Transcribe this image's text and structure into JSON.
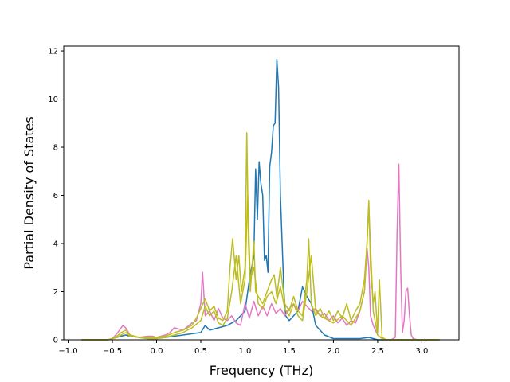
{
  "chart_data": {
    "type": "line",
    "title": "",
    "xlabel": "Frequency (THz)",
    "ylabel": "Partial Density of States",
    "xlim": [
      -1.05,
      3.42
    ],
    "ylim": [
      0,
      12.2
    ],
    "xticks": [
      -1.0,
      -0.5,
      0.0,
      0.5,
      1.0,
      1.5,
      2.0,
      2.5,
      3.0
    ],
    "xtick_labels": [
      "−1.0",
      "−0.5",
      "0.0",
      "0.5",
      "1.0",
      "1.5",
      "2.0",
      "2.5",
      "3.0"
    ],
    "yticks": [
      0,
      2,
      4,
      6,
      8,
      10,
      12
    ],
    "ytick_labels": [
      "0",
      "2",
      "4",
      "6",
      "8",
      "10",
      "12"
    ],
    "grid": false,
    "legend": "none",
    "series": [
      {
        "color": "#1f77b4",
        "x": [
          -0.85,
          -0.55,
          -0.5,
          -0.45,
          -0.4,
          -0.35,
          -0.3,
          -0.2,
          -0.1,
          0.0,
          0.1,
          0.2,
          0.3,
          0.4,
          0.5,
          0.55,
          0.6,
          0.7,
          0.8,
          0.9,
          1.0,
          1.05,
          1.1,
          1.12,
          1.14,
          1.16,
          1.18,
          1.2,
          1.22,
          1.24,
          1.26,
          1.28,
          1.3,
          1.32,
          1.34,
          1.36,
          1.38,
          1.4,
          1.42,
          1.44,
          1.46,
          1.5,
          1.55,
          1.6,
          1.65,
          1.7,
          1.75,
          1.8,
          1.9,
          2.0,
          2.1,
          2.2,
          2.3,
          2.4,
          2.45,
          2.5,
          2.6,
          2.8,
          3.0,
          3.2
        ],
        "values": [
          0,
          0,
          0.05,
          0.1,
          0.15,
          0.2,
          0.15,
          0.1,
          0.05,
          0.05,
          0.1,
          0.15,
          0.2,
          0.25,
          0.3,
          0.6,
          0.4,
          0.5,
          0.6,
          0.8,
          1.2,
          2.5,
          3.5,
          7.1,
          5.0,
          7.4,
          6.5,
          6.0,
          3.3,
          3.5,
          2.8,
          7.2,
          7.8,
          8.9,
          9.0,
          11.65,
          10.5,
          6.0,
          4.0,
          2.0,
          1.0,
          0.8,
          1.0,
          1.2,
          2.2,
          1.8,
          1.5,
          0.6,
          0.2,
          0.05,
          0.05,
          0.05,
          0.05,
          0.1,
          0.05,
          0.0,
          0.0,
          0.0,
          0.0,
          0.0
        ]
      },
      {
        "color": "#e377c2",
        "x": [
          -0.85,
          -0.55,
          -0.5,
          -0.45,
          -0.42,
          -0.38,
          -0.35,
          -0.3,
          -0.25,
          -0.2,
          -0.1,
          -0.05,
          0.0,
          0.1,
          0.15,
          0.2,
          0.3,
          0.4,
          0.45,
          0.5,
          0.52,
          0.55,
          0.6,
          0.65,
          0.7,
          0.75,
          0.8,
          0.85,
          0.9,
          0.95,
          1.0,
          1.05,
          1.1,
          1.15,
          1.2,
          1.25,
          1.3,
          1.35,
          1.4,
          1.45,
          1.5,
          1.55,
          1.6,
          1.65,
          1.7,
          1.75,
          1.8,
          1.85,
          1.9,
          1.95,
          2.0,
          2.05,
          2.1,
          2.15,
          2.2,
          2.25,
          2.3,
          2.35,
          2.38,
          2.4,
          2.42,
          2.45,
          2.5,
          2.55,
          2.6,
          2.65,
          2.7,
          2.72,
          2.74,
          2.76,
          2.78,
          2.8,
          2.82,
          2.84,
          2.86,
          2.88,
          2.9,
          2.95,
          3.0,
          3.2
        ],
        "values": [
          0,
          0,
          0.05,
          0.25,
          0.4,
          0.6,
          0.5,
          0.2,
          0.15,
          0.1,
          0.15,
          0.15,
          0.1,
          0.2,
          0.3,
          0.5,
          0.4,
          0.7,
          0.8,
          1.5,
          2.8,
          1.0,
          1.2,
          0.8,
          1.3,
          0.9,
          0.8,
          1.0,
          0.7,
          0.6,
          1.5,
          0.9,
          1.6,
          1.0,
          1.4,
          1.0,
          1.5,
          1.1,
          1.3,
          1.0,
          1.3,
          1.5,
          1.2,
          1.6,
          1.4,
          1.2,
          1.3,
          1.0,
          1.1,
          0.8,
          1.0,
          0.7,
          0.9,
          0.6,
          0.8,
          0.7,
          1.2,
          2.0,
          3.8,
          3.0,
          1.0,
          0.6,
          0.2,
          0.05,
          0.0,
          0.0,
          0.1,
          4.5,
          7.3,
          3.0,
          0.3,
          0.8,
          2.0,
          2.15,
          1.0,
          0.2,
          0.05,
          0.0,
          0.0,
          0.0
        ]
      },
      {
        "color": "#bcbd22",
        "x": [
          -0.85,
          -0.55,
          -0.5,
          -0.45,
          -0.4,
          -0.35,
          -0.3,
          -0.2,
          -0.1,
          0.0,
          0.1,
          0.2,
          0.3,
          0.4,
          0.45,
          0.5,
          0.55,
          0.6,
          0.65,
          0.7,
          0.75,
          0.8,
          0.83,
          0.86,
          0.9,
          0.93,
          0.96,
          1.0,
          1.02,
          1.04,
          1.06,
          1.08,
          1.1,
          1.12,
          1.15,
          1.2,
          1.25,
          1.3,
          1.33,
          1.36,
          1.4,
          1.45,
          1.5,
          1.55,
          1.6,
          1.65,
          1.7,
          1.72,
          1.75,
          1.8,
          1.85,
          1.9,
          1.95,
          2.0,
          2.05,
          2.1,
          2.15,
          2.2,
          2.25,
          2.3,
          2.35,
          2.38,
          2.4,
          2.42,
          2.45,
          2.47,
          2.5,
          2.52,
          2.55,
          2.6,
          3.0,
          3.2
        ],
        "values": [
          0,
          0,
          0.05,
          0.15,
          0.3,
          0.4,
          0.2,
          0.1,
          0.1,
          0.1,
          0.15,
          0.3,
          0.4,
          0.6,
          0.9,
          1.3,
          1.7,
          1.2,
          1.4,
          0.9,
          0.8,
          1.2,
          3.0,
          4.2,
          2.5,
          3.5,
          2.0,
          3.0,
          8.6,
          4.0,
          2.0,
          3.0,
          4.1,
          2.0,
          1.8,
          1.5,
          2.0,
          2.5,
          2.7,
          1.8,
          3.0,
          1.5,
          1.2,
          1.8,
          1.2,
          1.0,
          2.5,
          4.2,
          1.5,
          1.0,
          1.3,
          0.9,
          1.2,
          0.8,
          1.2,
          0.9,
          1.5,
          0.8,
          1.2,
          1.5,
          2.5,
          4.0,
          5.8,
          3.0,
          1.5,
          2.0,
          0.3,
          2.5,
          0.1,
          0.0,
          0.0,
          0.0
        ]
      },
      {
        "color": "#bcbd22",
        "x": [
          -0.85,
          -0.55,
          -0.5,
          -0.45,
          -0.4,
          -0.35,
          -0.3,
          -0.2,
          -0.1,
          0.0,
          0.1,
          0.2,
          0.3,
          0.4,
          0.5,
          0.55,
          0.6,
          0.65,
          0.7,
          0.75,
          0.8,
          0.85,
          0.9,
          0.95,
          1.0,
          1.03,
          1.06,
          1.1,
          1.15,
          1.2,
          1.25,
          1.3,
          1.35,
          1.4,
          1.45,
          1.5,
          1.55,
          1.6,
          1.65,
          1.7,
          1.75,
          1.8,
          1.85,
          1.9,
          2.0,
          2.1,
          2.2,
          2.3,
          2.35,
          2.4,
          2.45,
          2.5,
          2.55,
          2.6,
          3.0,
          3.2
        ],
        "values": [
          0,
          0,
          0.05,
          0.1,
          0.2,
          0.3,
          0.15,
          0.1,
          0.05,
          0.05,
          0.1,
          0.2,
          0.3,
          0.5,
          0.8,
          1.4,
          1.0,
          1.2,
          0.7,
          0.6,
          0.9,
          2.0,
          3.5,
          1.5,
          2.5,
          6.0,
          2.5,
          3.0,
          1.5,
          1.3,
          1.8,
          2.0,
          1.5,
          2.2,
          1.3,
          1.0,
          1.5,
          1.0,
          0.8,
          2.0,
          3.5,
          1.2,
          1.0,
          0.9,
          0.7,
          1.0,
          0.6,
          1.2,
          2.0,
          5.5,
          1.2,
          0.2,
          0.05,
          0.0,
          0.0,
          0.0
        ]
      }
    ]
  }
}
